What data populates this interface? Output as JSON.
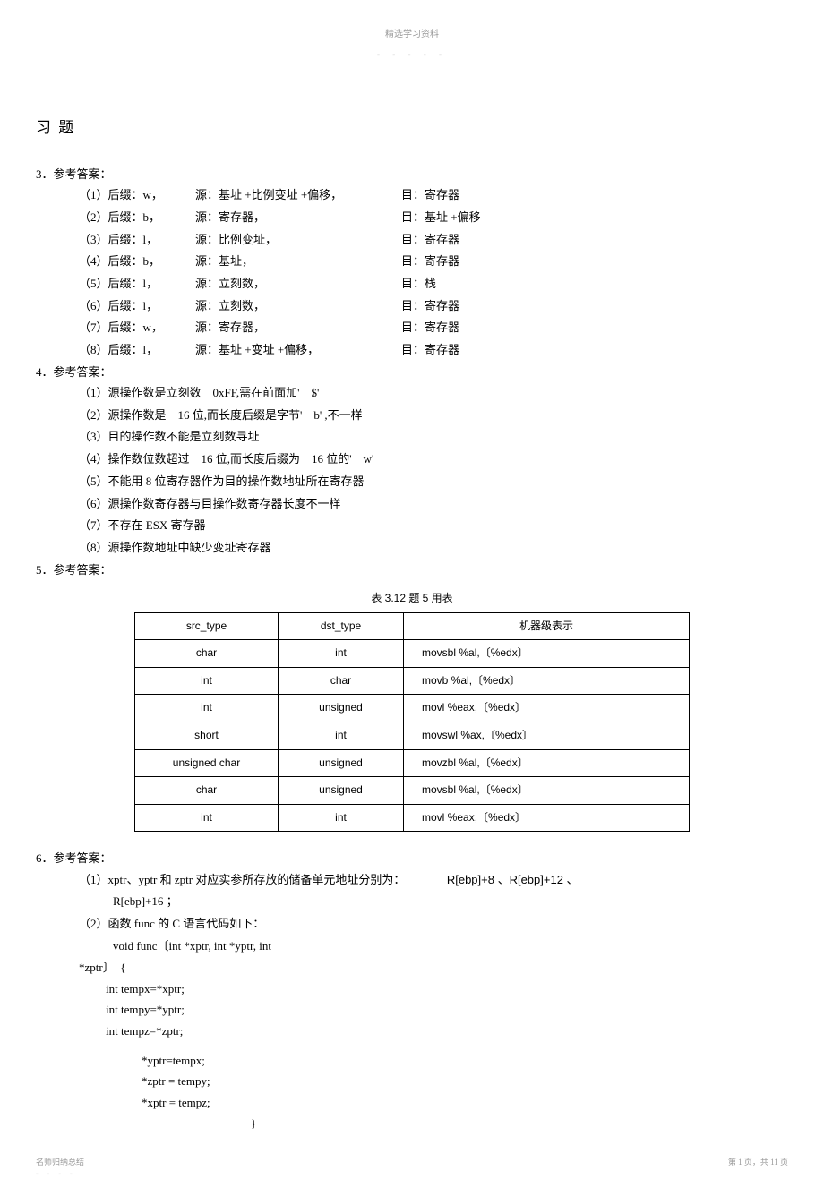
{
  "header": {
    "top": "精选学习资料",
    "sub": "- - - - -"
  },
  "title": "习 题",
  "q3": {
    "label": "3．参考答案：",
    "rows": [
      {
        "c1": "（1）后缀：w，",
        "c2": "源：基址 +比例变址 +偏移，",
        "c3": "目：寄存器"
      },
      {
        "c1": "（2）后缀：b，",
        "c2": "源：寄存器，",
        "c3": "目：基址 +偏移"
      },
      {
        "c1": "（3）后缀：l，",
        "c2": "源：比例变址，",
        "c3": "目：寄存器"
      },
      {
        "c1": "（4）后缀：b，",
        "c2": "源：基址，",
        "c3": "目：寄存器"
      },
      {
        "c1": "（5）后缀：l，",
        "c2": "源：立刻数，",
        "c3": "目：栈"
      },
      {
        "c1": "（6）后缀：l，",
        "c2": "源：立刻数，",
        "c3": "目：寄存器"
      },
      {
        "c1": "（7）后缀：w，",
        "c2": "源：寄存器，",
        "c3": "目：寄存器"
      },
      {
        "c1": "（8）后缀：l，",
        "c2": "源：基址 +变址 +偏移，",
        "c3": "目：寄存器"
      }
    ]
  },
  "q4": {
    "label": "4．参考答案：",
    "rows": [
      "（1）源操作数是立刻数　0xFF,需在前面加'　$'",
      "（2）源操作数是　16 位,而长度后缀是字节'　b' ,不一样",
      "（3）目的操作数不能是立刻数寻址",
      "（4）操作数位数超过　16 位,而长度后缀为　16 位的'　w'",
      "（5）不能用 8 位寄存器作为目的操作数地址所在寄存器",
      "（6）源操作数寄存器与目操作数寄存器长度不一样",
      "（7）不存在 ESX 寄存器",
      "（8）源操作数地址中缺少变址寄存器"
    ]
  },
  "q5": {
    "label": "5．参考答案：",
    "caption": "表 3.12 题 5 用表",
    "headers": [
      "src_type",
      "dst_type",
      "机器级表示"
    ],
    "rows": [
      [
        "char",
        "int",
        "movsbl %al,〔%edx〕"
      ],
      [
        "int",
        "char",
        "movb %al,〔%edx〕"
      ],
      [
        "int",
        "unsigned",
        "movl %eax,〔%edx〕"
      ],
      [
        "short",
        "int",
        "movswl %ax,〔%edx〕"
      ],
      [
        "unsigned char",
        "unsigned",
        "movzbl %al,〔%edx〕"
      ],
      [
        "char",
        "unsigned",
        "movsbl %al,〔%edx〕"
      ],
      [
        "int",
        "int",
        "movl %eax,〔%edx〕"
      ]
    ]
  },
  "q6": {
    "label": "6．参考答案：",
    "line1a": "（1）xptr、yptr 和 zptr 对应实参所存放的储备单元地址分别为：",
    "line1b": "R[ebp]+8 、R[ebp]+12 、",
    "line1c": "R[ebp]+16 ；",
    "line2": "（2）函数 func 的 C 语言代码如下：",
    "code": {
      "l1": "void func〔int *xptr, int *yptr, int",
      "l2": "*zptr〕　{",
      "l3": "int tempx=*xptr;",
      "l4": "int tempy=*yptr;",
      "l5": "int tempz=*zptr;",
      "l6": "*yptr=tempx;",
      "l7": "*zptr = tempy;",
      "l8": "*xptr = tempz;",
      "l9": "}"
    }
  },
  "footer": {
    "left": "名师归纳总结",
    "leftSub": "- - - -",
    "right": "第 1 页，共 11 页"
  }
}
